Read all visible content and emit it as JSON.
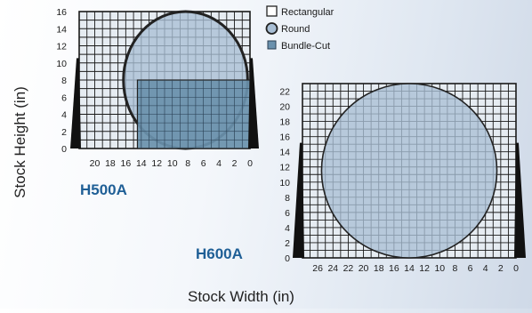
{
  "chart_data": [
    {
      "type": "area",
      "model": "H500A",
      "xlabel": "Stock Width (in)",
      "ylabel": "Stock Height (in)",
      "xlim": [
        0,
        22
      ],
      "ylim": [
        0,
        16
      ],
      "x_ticks": [
        "20",
        "18",
        "16",
        "14",
        "12",
        "10",
        "8",
        "6",
        "4",
        "2",
        "0"
      ],
      "y_ticks": [
        "0",
        "2",
        "4",
        "6",
        "8",
        "10",
        "12",
        "14",
        "16"
      ],
      "x_reversed": true,
      "grid": true,
      "capacities": {
        "rectangular": {
          "width": 22,
          "height": 16
        },
        "round": {
          "diameter": 16
        },
        "bundle_cut": {
          "width": 14.5,
          "height": 8
        }
      }
    },
    {
      "type": "area",
      "model": "H600A",
      "xlabel": "Stock Width (in)",
      "ylabel": "Stock Height (in)",
      "xlim": [
        0,
        28
      ],
      "ylim": [
        0,
        23
      ],
      "x_ticks": [
        "26",
        "24",
        "22",
        "20",
        "18",
        "16",
        "14",
        "12",
        "10",
        "8",
        "6",
        "4",
        "2",
        "0"
      ],
      "y_ticks": [
        "0",
        "2",
        "4",
        "6",
        "8",
        "10",
        "12",
        "14",
        "16",
        "18",
        "20",
        "22"
      ],
      "x_reversed": true,
      "grid": true,
      "capacities": {
        "rectangular": {
          "width": 28,
          "height": 23
        },
        "round": {
          "diameter": 23
        }
      }
    }
  ],
  "legend": [
    {
      "key": "rectangular",
      "label": "Rectangular"
    },
    {
      "key": "round",
      "label": "Round"
    },
    {
      "key": "bundle_cut",
      "label": "Bundle-Cut"
    }
  ],
  "colors": {
    "rect_fill": "#e6ecf2",
    "grid": "#1a1a1a",
    "round_fill": "#a9bfd5",
    "round_stroke": "#222222",
    "bundle_fill": "#6a91ad",
    "jaw": "#111111",
    "model_label": "#1f5f96"
  }
}
